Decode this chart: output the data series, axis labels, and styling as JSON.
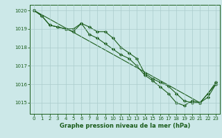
{
  "xlabel": "Graphe pression niveau de la mer (hPa)",
  "xlim": [
    -0.5,
    23.5
  ],
  "ylim": [
    1014.4,
    1020.3
  ],
  "yticks": [
    1015,
    1016,
    1017,
    1018,
    1019,
    1020
  ],
  "xticks": [
    0,
    1,
    2,
    3,
    4,
    5,
    6,
    7,
    8,
    9,
    10,
    11,
    12,
    13,
    14,
    15,
    16,
    17,
    18,
    19,
    20,
    21,
    22,
    23
  ],
  "bg_color": "#cce8e8",
  "grid_color": "#aacccc",
  "line_color": "#1a5c1a",
  "series1": [
    1020.0,
    1019.7,
    1019.2,
    1019.1,
    1019.0,
    1019.0,
    1019.3,
    1019.1,
    1018.85,
    1018.85,
    1018.5,
    1018.0,
    1017.7,
    1017.4,
    1016.6,
    1016.3,
    1016.1,
    1015.9,
    1015.5,
    1015.1,
    1015.0,
    1015.0,
    1015.3,
    1016.0
  ],
  "series2": [
    1020.0,
    1019.7,
    1019.2,
    1019.1,
    1019.0,
    1018.85,
    1019.3,
    1018.7,
    1018.5,
    1018.2,
    1017.9,
    1017.6,
    1017.4,
    1017.0,
    1016.5,
    1016.2,
    1015.85,
    1015.5,
    1015.0,
    1014.85,
    1015.1,
    1015.0,
    1015.5,
    1016.1
  ],
  "series3_x": [
    0,
    21,
    23
  ],
  "series3_y": [
    1020.0,
    1015.0,
    1016.0
  ],
  "marker": "D",
  "markersize": 2.2,
  "linewidth": 0.8,
  "tick_fontsize": 5.0,
  "label_fontsize": 6.0
}
